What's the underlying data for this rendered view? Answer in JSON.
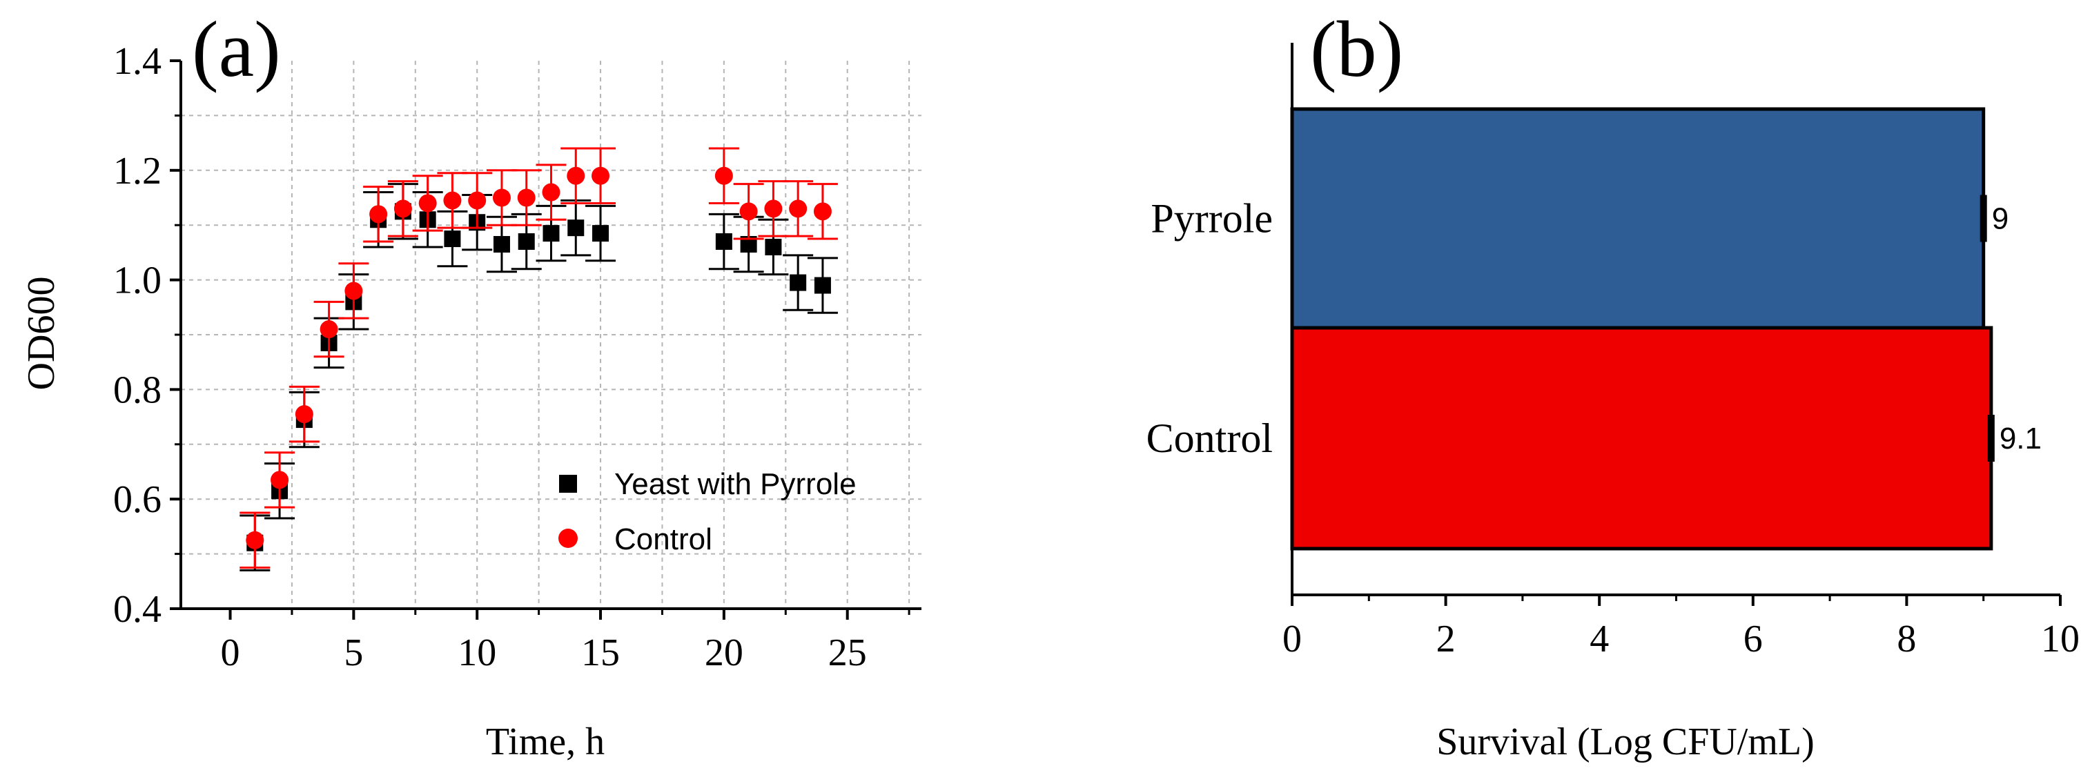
{
  "chart_data": [
    {
      "type": "scatter",
      "panel_label": "(a)",
      "title": "",
      "xlabel": "Time, h",
      "ylabel": "OD600",
      "xlim": [
        -2,
        28
      ],
      "ylim": [
        0.4,
        1.4
      ],
      "xticks": [
        0,
        5,
        10,
        15,
        20,
        25
      ],
      "yticks": [
        0.4,
        0.6,
        0.8,
        1.0,
        1.2,
        1.4
      ],
      "xtick_labels": [
        "0",
        "5",
        "10",
        "15",
        "20",
        "25"
      ],
      "ytick_labels": [
        "0.4",
        "0.6",
        "0.8",
        "1.0",
        "1.2",
        "1.4"
      ],
      "grid": true,
      "legend_position": "bottom-right",
      "series": [
        {
          "name": "Yeast with Pyrrole",
          "color": "#000000",
          "marker": "square",
          "x": [
            1,
            2,
            3,
            4,
            5,
            6,
            7,
            8,
            9,
            10,
            11,
            12,
            13,
            14,
            15,
            20,
            21,
            22,
            23,
            24
          ],
          "y": [
            0.52,
            0.615,
            0.745,
            0.885,
            0.96,
            1.11,
            1.125,
            1.11,
            1.075,
            1.105,
            1.065,
            1.07,
            1.085,
            1.095,
            1.085,
            1.07,
            1.065,
            1.06,
            0.995,
            0.99
          ],
          "err": [
            0.05,
            0.05,
            0.05,
            0.045,
            0.05,
            0.05,
            0.05,
            0.05,
            0.05,
            0.05,
            0.05,
            0.05,
            0.05,
            0.05,
            0.05,
            0.05,
            0.05,
            0.05,
            0.05,
            0.05
          ]
        },
        {
          "name": "Control",
          "color": "#ff0000",
          "marker": "circle",
          "x": [
            1,
            2,
            3,
            4,
            5,
            6,
            7,
            8,
            9,
            10,
            11,
            12,
            13,
            14,
            15,
            20,
            21,
            22,
            23,
            24
          ],
          "y": [
            0.525,
            0.635,
            0.755,
            0.91,
            0.98,
            1.12,
            1.13,
            1.14,
            1.145,
            1.145,
            1.15,
            1.15,
            1.16,
            1.19,
            1.19,
            1.19,
            1.125,
            1.13,
            1.13,
            1.125
          ],
          "err": [
            0.05,
            0.05,
            0.05,
            0.05,
            0.05,
            0.05,
            0.05,
            0.05,
            0.05,
            0.05,
            0.05,
            0.05,
            0.05,
            0.05,
            0.05,
            0.05,
            0.05,
            0.05,
            0.05,
            0.05
          ]
        }
      ]
    },
    {
      "type": "bar",
      "orientation": "horizontal",
      "panel_label": "(b)",
      "title": "",
      "xlabel": "Survival (Log CFU/mL)",
      "ylabel": "",
      "xlim": [
        0,
        10
      ],
      "xticks": [
        0,
        2,
        4,
        6,
        8,
        10
      ],
      "xtick_labels": [
        "0",
        "2",
        "4",
        "6",
        "8",
        "10"
      ],
      "categories": [
        "Pyrrole",
        "Control"
      ],
      "values": [
        9,
        9.1
      ],
      "value_labels": [
        "9",
        "9.1"
      ],
      "colors": [
        "#2e5d96",
        "#ee0000"
      ],
      "grid": false
    }
  ]
}
